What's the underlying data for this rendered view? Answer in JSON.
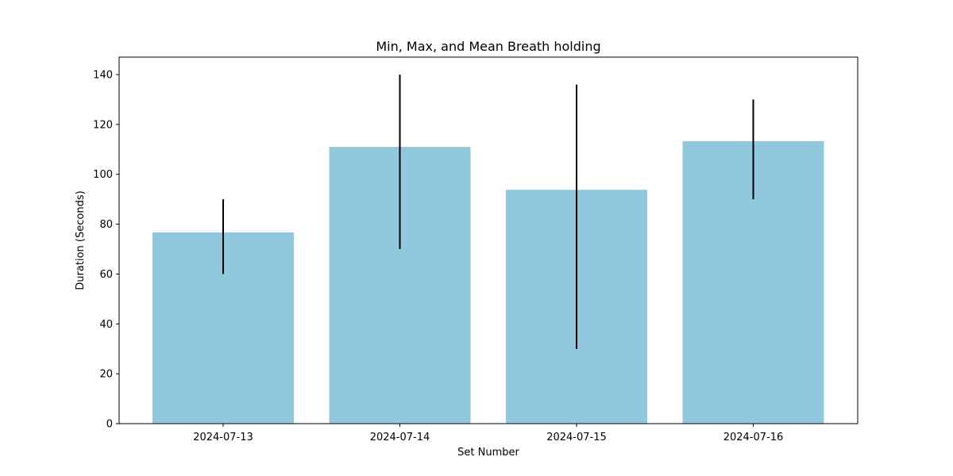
{
  "chart_data": {
    "type": "bar",
    "title": "Min, Max, and Mean Breath holding",
    "xlabel": "Set Number",
    "ylabel": "Duration (Seconds)",
    "categories": [
      "2024-07-13",
      "2024-07-14",
      "2024-07-15",
      "2024-07-16"
    ],
    "series": [
      {
        "values": [
          76.7,
          111.0,
          93.8,
          113.3
        ],
        "min": [
          60,
          70,
          30,
          90
        ],
        "max": [
          90,
          140,
          136,
          130
        ]
      }
    ],
    "ylim": [
      0,
      147
    ],
    "yticks": [
      0,
      20,
      40,
      60,
      80,
      100,
      120,
      140
    ],
    "grid": false,
    "legend": "none",
    "colors": {
      "bar": "#92c8dd",
      "error_bar": "#000000",
      "axes": "#000000"
    }
  }
}
